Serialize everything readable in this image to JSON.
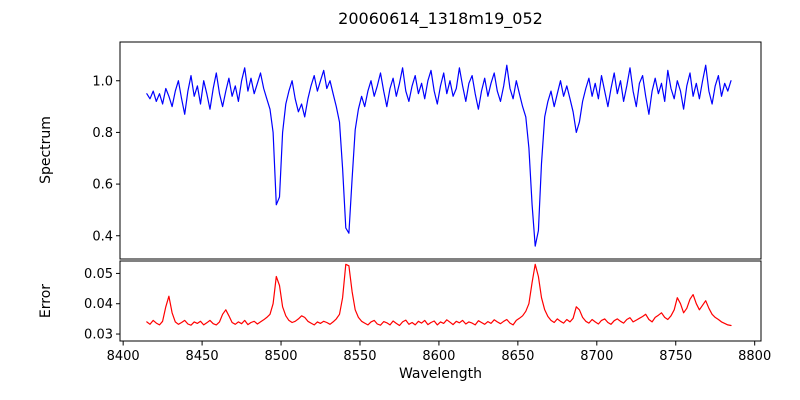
{
  "colors": {
    "background": "#ffffff",
    "axes": "#000000",
    "text": "#000000",
    "spectrum_line": "#0000ff",
    "error_line": "#ff0000"
  },
  "chart_data": [
    {
      "type": "line",
      "title": "20060614_1318m19_052",
      "ylabel": "Spectrum",
      "legend": "none",
      "grid": false,
      "xlim": [
        8398,
        8804
      ],
      "ylim": [
        0.31,
        1.15
      ],
      "yticks": [
        "1.0",
        "0.8",
        "0.6",
        "0.4"
      ],
      "annotations": "absorption lines near 8498, 8542, 8662 reaching depths 0.50, 0.41, 0.36",
      "series": [
        {
          "name": "spectrum",
          "color": "#0000ff",
          "x_start": 8415,
          "x_step": 2,
          "values": [
            0.95,
            0.93,
            0.96,
            0.92,
            0.95,
            0.91,
            0.97,
            0.94,
            0.9,
            0.96,
            1.0,
            0.93,
            0.87,
            0.96,
            1.02,
            0.94,
            0.98,
            0.91,
            1.0,
            0.95,
            0.89,
            0.97,
            1.03,
            0.95,
            0.9,
            0.96,
            1.01,
            0.94,
            0.98,
            0.92,
            1.0,
            1.05,
            0.96,
            1.01,
            0.95,
            0.99,
            1.03,
            0.97,
            0.93,
            0.89,
            0.8,
            0.52,
            0.55,
            0.8,
            0.91,
            0.96,
            1.0,
            0.93,
            0.88,
            0.91,
            0.86,
            0.93,
            0.98,
            1.02,
            0.96,
            1.0,
            1.04,
            0.97,
            1.0,
            0.95,
            0.9,
            0.84,
            0.66,
            0.43,
            0.41,
            0.62,
            0.81,
            0.89,
            0.94,
            0.9,
            0.96,
            1.0,
            0.94,
            0.98,
            1.03,
            0.96,
            0.9,
            0.97,
            1.01,
            0.94,
            0.99,
            1.05,
            0.96,
            0.92,
            0.98,
            1.02,
            0.95,
            0.99,
            0.93,
            1.0,
            1.04,
            0.96,
            0.91,
            0.98,
            1.03,
            0.95,
            1.0,
            0.94,
            0.97,
            1.05,
            0.98,
            0.92,
            0.99,
            1.02,
            0.95,
            0.89,
            0.96,
            1.01,
            0.94,
            0.99,
            1.03,
            0.96,
            0.92,
            0.98,
            1.06,
            0.97,
            0.93,
            1.0,
            0.95,
            0.9,
            0.86,
            0.74,
            0.52,
            0.36,
            0.42,
            0.68,
            0.86,
            0.92,
            0.96,
            0.9,
            0.95,
            1.0,
            0.94,
            0.98,
            0.93,
            0.88,
            0.8,
            0.84,
            0.92,
            0.97,
            1.01,
            0.94,
            0.99,
            0.93,
            1.02,
            0.96,
            0.9,
            0.97,
            1.03,
            0.95,
            1.0,
            0.92,
            0.98,
            1.05,
            0.96,
            0.9,
            0.99,
            1.02,
            0.94,
            0.87,
            0.96,
            1.01,
            0.95,
            0.99,
            0.92,
            1.04,
            0.97,
            0.93,
            1.0,
            0.96,
            0.89,
            0.98,
            1.03,
            0.94,
            0.99,
            0.93,
            1.0,
            1.06,
            0.96,
            0.91,
            0.98,
            1.02,
            0.94,
            0.99,
            0.96,
            1.0
          ]
        }
      ]
    },
    {
      "type": "line",
      "ylabel": "Error",
      "xlabel": "Wavelength",
      "legend": "none",
      "grid": false,
      "xlim": [
        8398,
        8804
      ],
      "ylim": [
        0.0277,
        0.0541
      ],
      "yticks": [
        "0.05",
        "0.04",
        "0.03"
      ],
      "xticks": [
        "8400",
        "8450",
        "8500",
        "8550",
        "8600",
        "8650",
        "8700",
        "8750",
        "8800"
      ],
      "annotations": "error peaks near 8429, 8497, 8542, 8662, 8761 reaching 0.042-0.053; baseline ~0.034",
      "series": [
        {
          "name": "error",
          "color": "#ff0000",
          "x_start": 8415,
          "x_step": 2,
          "values": [
            0.034,
            0.0332,
            0.0345,
            0.0336,
            0.033,
            0.0342,
            0.039,
            0.0425,
            0.037,
            0.034,
            0.0332,
            0.0338,
            0.0345,
            0.0333,
            0.0329,
            0.034,
            0.0335,
            0.0342,
            0.033,
            0.0337,
            0.0345,
            0.0334,
            0.033,
            0.034,
            0.0365,
            0.038,
            0.036,
            0.0338,
            0.0332,
            0.034,
            0.0334,
            0.0345,
            0.0331,
            0.0338,
            0.0342,
            0.0333,
            0.034,
            0.0347,
            0.0355,
            0.0365,
            0.04,
            0.049,
            0.046,
            0.039,
            0.036,
            0.0345,
            0.0338,
            0.0342,
            0.035,
            0.036,
            0.0355,
            0.0342,
            0.0336,
            0.033,
            0.034,
            0.0335,
            0.0342,
            0.0338,
            0.0332,
            0.034,
            0.035,
            0.0365,
            0.042,
            0.053,
            0.0525,
            0.044,
            0.038,
            0.0355,
            0.0342,
            0.0336,
            0.033,
            0.034,
            0.0345,
            0.0333,
            0.0329,
            0.0341,
            0.0337,
            0.033,
            0.0343,
            0.0335,
            0.0328,
            0.034,
            0.0346,
            0.0332,
            0.0338,
            0.033,
            0.0342,
            0.0336,
            0.0345,
            0.0331,
            0.0338,
            0.0343,
            0.033,
            0.034,
            0.0335,
            0.0347,
            0.0339,
            0.0331,
            0.0342,
            0.0337,
            0.0345,
            0.0333,
            0.034,
            0.0336,
            0.033,
            0.0344,
            0.0338,
            0.0332,
            0.0341,
            0.0335,
            0.0347,
            0.034,
            0.0334,
            0.0342,
            0.0348,
            0.0336,
            0.033,
            0.0345,
            0.0352,
            0.036,
            0.0375,
            0.04,
            0.047,
            0.053,
            0.049,
            0.042,
            0.038,
            0.0358,
            0.0345,
            0.0338,
            0.035,
            0.0342,
            0.0336,
            0.0348,
            0.034,
            0.0352,
            0.039,
            0.038,
            0.0355,
            0.0342,
            0.0336,
            0.0348,
            0.034,
            0.0333,
            0.0345,
            0.035,
            0.0338,
            0.0332,
            0.0344,
            0.035,
            0.0342,
            0.0336,
            0.0348,
            0.0354,
            0.034,
            0.0346,
            0.0352,
            0.0358,
            0.0365,
            0.0348,
            0.034,
            0.0355,
            0.0362,
            0.037,
            0.0355,
            0.0348,
            0.036,
            0.038,
            0.042,
            0.04,
            0.037,
            0.0385,
            0.0415,
            0.043,
            0.04,
            0.038,
            0.0395,
            0.041,
            0.0385,
            0.0365,
            0.0355,
            0.0348,
            0.034,
            0.0335,
            0.033,
            0.0328
          ]
        }
      ]
    }
  ]
}
